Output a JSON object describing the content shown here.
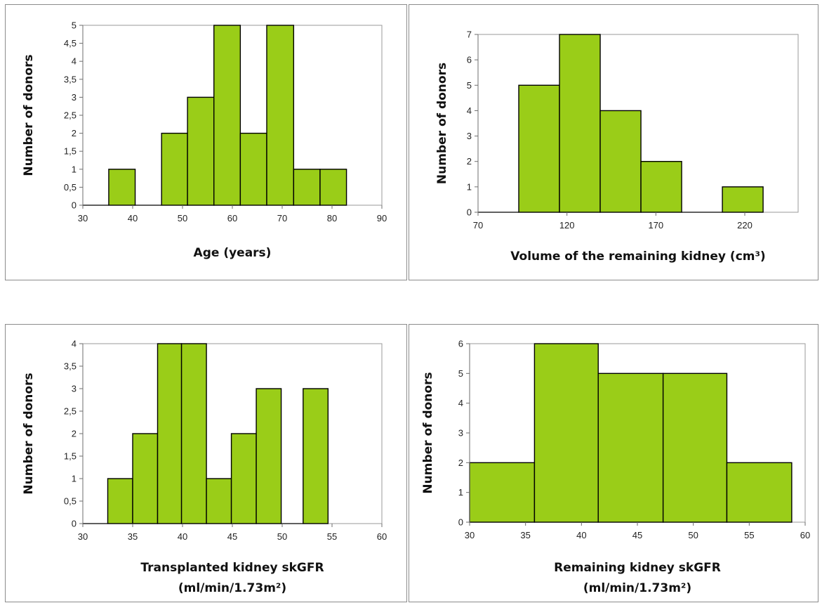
{
  "chart_data": [
    {
      "type": "bar",
      "subtype": "histogram",
      "title": "",
      "xlabel": "Age (years)",
      "ylabel": "Number of donors",
      "xlim": [
        30,
        90
      ],
      "ylim": [
        0,
        5
      ],
      "xticks": [
        "30",
        "40",
        "50",
        "60",
        "70",
        "80",
        "90"
      ],
      "yticks": [
        "0",
        "0,5",
        "1",
        "1,5",
        "2",
        "2,5",
        "3",
        "3,5",
        "4",
        "4,5",
        "5"
      ],
      "bins": [
        {
          "start": 30.0,
          "end": 35.2,
          "value": 0
        },
        {
          "start": 35.2,
          "end": 40.5,
          "value": 1
        },
        {
          "start": 40.5,
          "end": 45.8,
          "value": 0
        },
        {
          "start": 45.8,
          "end": 51.0,
          "value": 2
        },
        {
          "start": 51.0,
          "end": 56.3,
          "value": 3
        },
        {
          "start": 56.3,
          "end": 61.6,
          "value": 5
        },
        {
          "start": 61.6,
          "end": 66.9,
          "value": 2
        },
        {
          "start": 66.9,
          "end": 72.3,
          "value": 5
        },
        {
          "start": 72.3,
          "end": 77.6,
          "value": 1
        },
        {
          "start": 77.6,
          "end": 82.9,
          "value": 1
        }
      ],
      "grid": false,
      "color": "#9acd18"
    },
    {
      "type": "bar",
      "subtype": "histogram",
      "title": "",
      "xlabel": "Volume of the remaining kidney (cm³)",
      "ylabel": "Number of donors",
      "xlim": [
        70,
        250
      ],
      "ylim": [
        0,
        7
      ],
      "xticks": [
        "70",
        "120",
        "170",
        "220"
      ],
      "xtick_values": [
        70,
        120,
        170,
        220
      ],
      "yticks": [
        "0",
        "1",
        "2",
        "3",
        "4",
        "5",
        "6",
        "7"
      ],
      "bins": [
        {
          "start": 70.0,
          "end": 92.9,
          "value": 0
        },
        {
          "start": 92.9,
          "end": 115.8,
          "value": 5
        },
        {
          "start": 115.8,
          "end": 138.7,
          "value": 7
        },
        {
          "start": 138.7,
          "end": 161.6,
          "value": 4
        },
        {
          "start": 161.6,
          "end": 184.5,
          "value": 2
        },
        {
          "start": 184.5,
          "end": 207.4,
          "value": 0
        },
        {
          "start": 207.4,
          "end": 230.3,
          "value": 1
        }
      ],
      "grid": false,
      "color": "#9acd18"
    },
    {
      "type": "bar",
      "subtype": "histogram",
      "title": "",
      "xlabel": "Transplanted kidney skGFR",
      "xlabel_line2": "(ml/min/1.73m²)",
      "ylabel": "Number of donors",
      "xlim": [
        30,
        60
      ],
      "ylim": [
        0,
        4
      ],
      "xticks": [
        "30",
        "35",
        "40",
        "45",
        "50",
        "55",
        "60"
      ],
      "yticks": [
        "0",
        "0,5",
        "1",
        "1,5",
        "2",
        "2,5",
        "3",
        "3,5",
        "4"
      ],
      "bins": [
        {
          "start": 30.0,
          "end": 32.5,
          "value": 0
        },
        {
          "start": 32.5,
          "end": 35.0,
          "value": 1
        },
        {
          "start": 35.0,
          "end": 37.5,
          "value": 2
        },
        {
          "start": 37.5,
          "end": 39.9,
          "value": 4
        },
        {
          "start": 39.9,
          "end": 42.4,
          "value": 4
        },
        {
          "start": 42.4,
          "end": 44.9,
          "value": 1
        },
        {
          "start": 44.9,
          "end": 47.4,
          "value": 2
        },
        {
          "start": 47.4,
          "end": 49.9,
          "value": 3
        },
        {
          "start": 49.9,
          "end": 52.1,
          "value": 0
        },
        {
          "start": 52.1,
          "end": 54.6,
          "value": 3
        }
      ],
      "grid": false,
      "color": "#9acd18"
    },
    {
      "type": "bar",
      "subtype": "histogram",
      "title": "",
      "xlabel": "Remaining kidney skGFR",
      "xlabel_line2": "(ml/min/1.73m²)",
      "ylabel": "Number of donors",
      "xlim": [
        30,
        60
      ],
      "ylim": [
        0,
        6
      ],
      "xticks": [
        "30",
        "35",
        "40",
        "45",
        "50",
        "55",
        "60"
      ],
      "yticks": [
        "0",
        "1",
        "2",
        "3",
        "4",
        "5",
        "6"
      ],
      "bins": [
        {
          "start": 30.0,
          "end": 35.8,
          "value": 2
        },
        {
          "start": 35.8,
          "end": 41.5,
          "value": 6
        },
        {
          "start": 41.5,
          "end": 47.3,
          "value": 5
        },
        {
          "start": 47.3,
          "end": 53.0,
          "value": 5
        },
        {
          "start": 53.0,
          "end": 58.8,
          "value": 2
        }
      ],
      "grid": false,
      "color": "#9acd18"
    }
  ]
}
